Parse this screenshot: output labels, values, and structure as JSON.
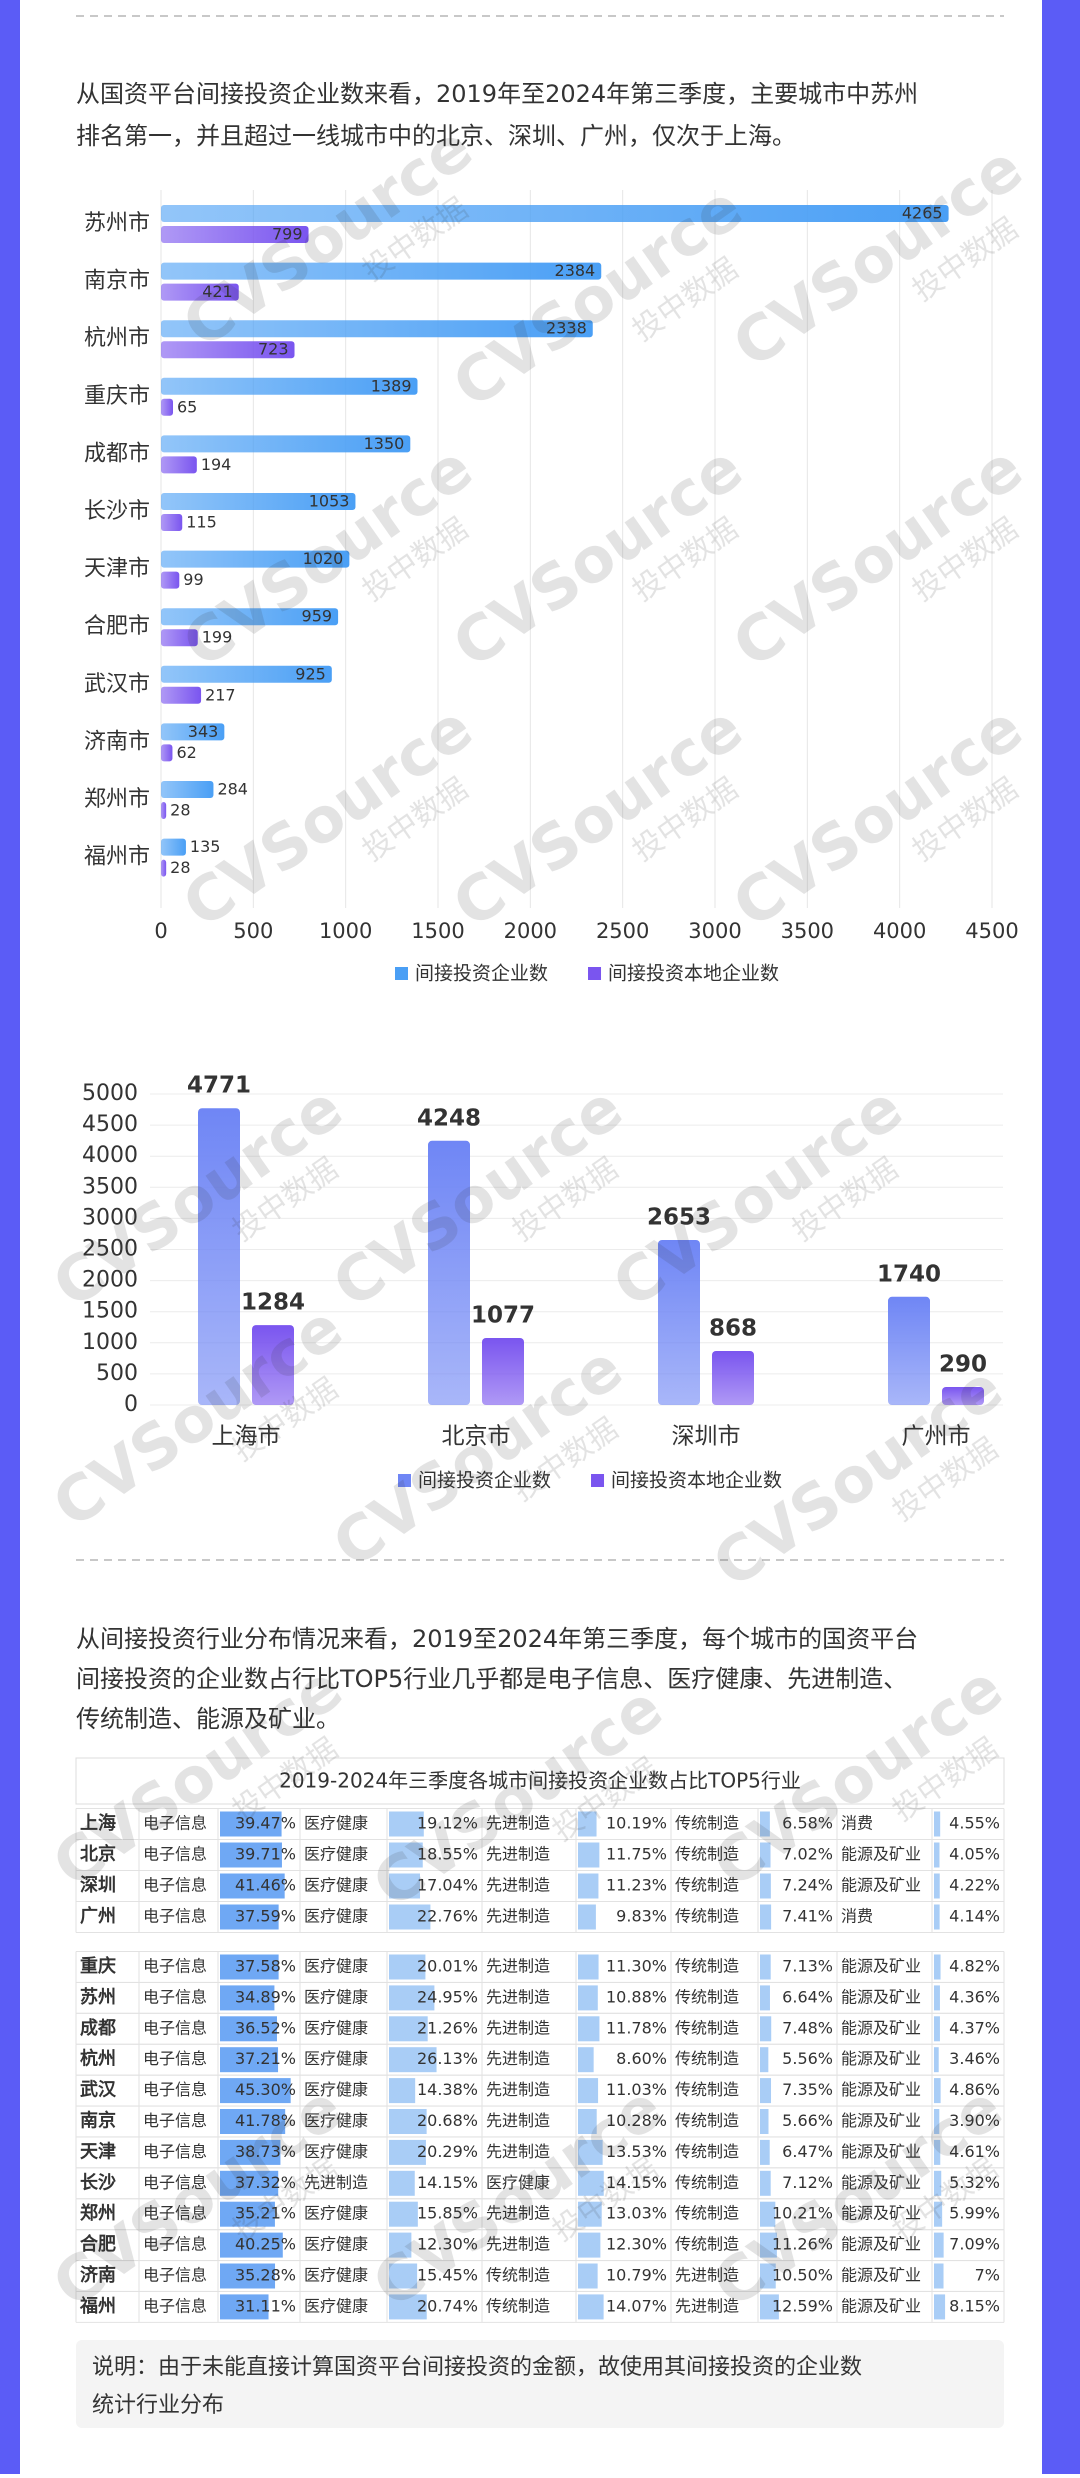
{
  "paragraphs": [
    {
      "lines": [
        "从国资平台间接投资企业数来看，2019年至2024年第三季度，主要城市中苏州",
        "排名第一，并且超过一线城市中的北京、深圳、广州，仅次于上海。"
      ]
    },
    {
      "lines": [
        "从间接投资行业分布情况来看，2019至2024年第三季度，每个城市的国资平台",
        "间接投资的企业数占行比TOP5行业几乎都是电子信息、医疗健康、先进制造、",
        "传统制造、能源及矿业。"
      ]
    }
  ],
  "watermark": {
    "brand": "CVSource",
    "sub": "投中数据"
  },
  "chart_data": [
    {
      "type": "hbar",
      "categories": [
        "苏州市",
        "南京市",
        "杭州市",
        "重庆市",
        "成都市",
        "长沙市",
        "天津市",
        "合肥市",
        "武汉市",
        "济南市",
        "郑州市",
        "福州市"
      ],
      "series": [
        {
          "name": "间接投资企业数",
          "color": "#4a9ff5",
          "values": [
            4265,
            2384,
            2338,
            1389,
            1350,
            1053,
            1020,
            959,
            925,
            343,
            284,
            135
          ]
        },
        {
          "name": "间接投资本地企业数",
          "color": "#7a55ef",
          "values": [
            799,
            421,
            723,
            65,
            194,
            115,
            99,
            199,
            217,
            62,
            28,
            28
          ]
        }
      ],
      "xlim": [
        0,
        4500
      ],
      "xticks": [
        0,
        500,
        1000,
        1500,
        2000,
        2500,
        3000,
        3500,
        4000,
        4500
      ],
      "grid": true
    },
    {
      "type": "bar",
      "categories": [
        "上海市",
        "北京市",
        "深圳市",
        "广州市"
      ],
      "series": [
        {
          "name": "间接投资企业数",
          "color": "#6f86f5",
          "values": [
            4771,
            4248,
            2653,
            1740
          ]
        },
        {
          "name": "间接投资本地企业数",
          "color": "#7a55ef",
          "values": [
            1284,
            1077,
            868,
            290
          ]
        }
      ],
      "ylim": [
        0,
        5000
      ],
      "yticks": [
        0,
        500,
        1000,
        1500,
        2000,
        2500,
        3000,
        3500,
        4000,
        4500,
        5000
      ],
      "grid": true
    }
  ],
  "table": {
    "title": "2019-2024年三季度各城市间接投资企业数占比TOP5行业",
    "rows": [
      [
        "上海",
        "电子信息",
        "39.47%",
        "医疗健康",
        "19.12%",
        "先进制造",
        "10.19%",
        "传统制造",
        "6.58%",
        "消费",
        "4.55%"
      ],
      [
        "北京",
        "电子信息",
        "39.71%",
        "医疗健康",
        "18.55%",
        "先进制造",
        "11.75%",
        "传统制造",
        "7.02%",
        "能源及矿业",
        "4.05%"
      ],
      [
        "深圳",
        "电子信息",
        "41.46%",
        "医疗健康",
        "17.04%",
        "先进制造",
        "11.23%",
        "传统制造",
        "7.24%",
        "能源及矿业",
        "4.22%"
      ],
      [
        "广州",
        "电子信息",
        "37.59%",
        "医疗健康",
        "22.76%",
        "先进制造",
        "9.83%",
        "传统制造",
        "7.41%",
        "消费",
        "4.14%"
      ],
      [
        "重庆",
        "电子信息",
        "37.58%",
        "医疗健康",
        "20.01%",
        "先进制造",
        "11.30%",
        "传统制造",
        "7.13%",
        "能源及矿业",
        "4.82%"
      ],
      [
        "苏州",
        "电子信息",
        "34.89%",
        "医疗健康",
        "24.95%",
        "先进制造",
        "10.88%",
        "传统制造",
        "6.64%",
        "能源及矿业",
        "4.36%"
      ],
      [
        "成都",
        "电子信息",
        "36.52%",
        "医疗健康",
        "21.26%",
        "先进制造",
        "11.78%",
        "传统制造",
        "7.48%",
        "能源及矿业",
        "4.37%"
      ],
      [
        "杭州",
        "电子信息",
        "37.21%",
        "医疗健康",
        "26.13%",
        "先进制造",
        "8.60%",
        "传统制造",
        "5.56%",
        "能源及矿业",
        "3.46%"
      ],
      [
        "武汉",
        "电子信息",
        "45.30%",
        "医疗健康",
        "14.38%",
        "先进制造",
        "11.03%",
        "传统制造",
        "7.35%",
        "能源及矿业",
        "4.86%"
      ],
      [
        "南京",
        "电子信息",
        "41.78%",
        "医疗健康",
        "20.68%",
        "先进制造",
        "10.28%",
        "传统制造",
        "5.66%",
        "能源及矿业",
        "3.90%"
      ],
      [
        "天津",
        "电子信息",
        "38.73%",
        "医疗健康",
        "20.29%",
        "先进制造",
        "13.53%",
        "传统制造",
        "6.47%",
        "能源及矿业",
        "4.61%"
      ],
      [
        "长沙",
        "电子信息",
        "37.32%",
        "先进制造",
        "14.15%",
        "医疗健康",
        "14.15%",
        "传统制造",
        "7.12%",
        "能源及矿业",
        "5.32%"
      ],
      [
        "郑州",
        "电子信息",
        "35.21%",
        "医疗健康",
        "15.85%",
        "先进制造",
        "13.03%",
        "传统制造",
        "10.21%",
        "能源及矿业",
        "5.99%"
      ],
      [
        "合肥",
        "电子信息",
        "40.25%",
        "医疗健康",
        "12.30%",
        "先进制造",
        "12.30%",
        "传统制造",
        "11.26%",
        "能源及矿业",
        "7.09%"
      ],
      [
        "济南",
        "电子信息",
        "35.28%",
        "医疗健康",
        "15.45%",
        "传统制造",
        "10.79%",
        "先进制造",
        "10.50%",
        "能源及矿业",
        "7%"
      ],
      [
        "福州",
        "电子信息",
        "31.11%",
        "医疗健康",
        "20.74%",
        "传统制造",
        "14.07%",
        "先进制造",
        "12.59%",
        "能源及矿业",
        "8.15%"
      ]
    ]
  },
  "note": {
    "lines": [
      "说明：由于未能直接计算国资平台间接投资的金额，故使用其间接投资的企业数",
      "统计行业分布"
    ]
  }
}
